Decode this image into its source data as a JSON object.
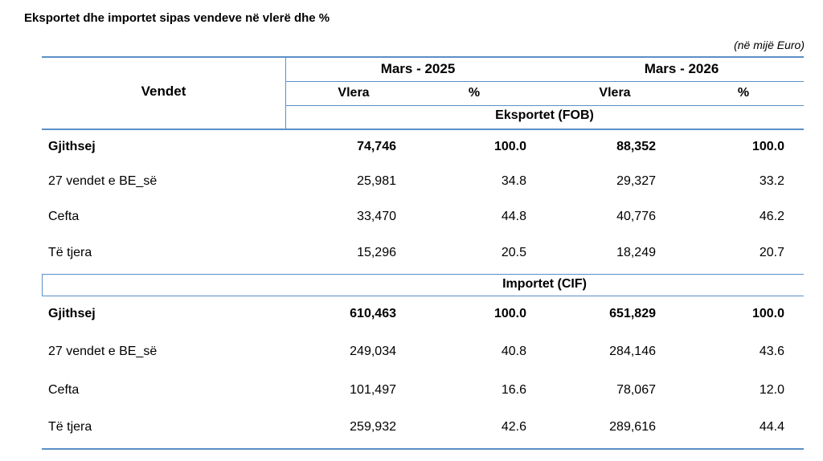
{
  "title": "Eksportet dhe importet sipas vendeve në vlerë dhe %",
  "unit_note": "(në mijë Euro)",
  "header": {
    "col_vendet": "Vendet",
    "period_1": "Mars - 2025",
    "period_2": "Mars - 2026",
    "vlera_1": "Vlera",
    "pct_1": "%",
    "vlera_2": "Vlera",
    "pct_2": "%"
  },
  "sections": [
    {
      "label": "Eksportet (FOB)",
      "rows": [
        {
          "name": "Gjithsej",
          "v1": "74,746",
          "p1": "100.0",
          "v2": "88,352",
          "p2": "100.0"
        },
        {
          "name": "27 vendet e BE_së",
          "v1": "25,981",
          "p1": "34.8",
          "v2": "29,327",
          "p2": "33.2"
        },
        {
          "name": "Cefta",
          "v1": "33,470",
          "p1": "44.8",
          "v2": "40,776",
          "p2": "46.2"
        },
        {
          "name": "Të tjera",
          "v1": "15,296",
          "p1": "20.5",
          "v2": "18,249",
          "p2": "20.7"
        }
      ]
    },
    {
      "label": "Importet (CIF)",
      "rows": [
        {
          "name": "Gjithsej",
          "v1": "610,463",
          "p1": "100.0",
          "v2": "651,829",
          "p2": "100.0"
        },
        {
          "name": "27 vendet e BE_së",
          "v1": "249,034",
          "p1": "40.8",
          "v2": "284,146",
          "p2": "43.6"
        },
        {
          "name": "Cefta",
          "v1": "101,497",
          "p1": "16.6",
          "v2": "78,067",
          "p2": "12.0"
        },
        {
          "name": "Të tjera",
          "v1": "259,932",
          "p1": "42.6",
          "v2": "289,616",
          "p2": "44.4"
        }
      ]
    }
  ]
}
